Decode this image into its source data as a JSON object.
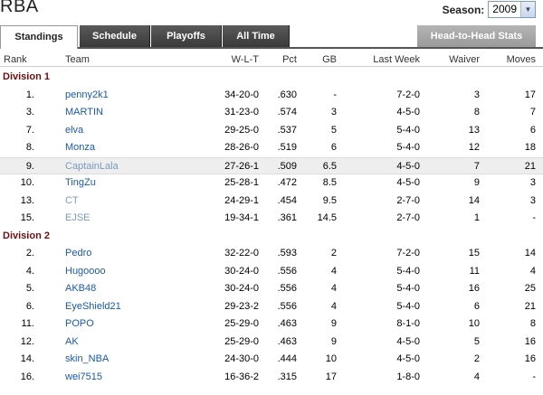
{
  "title": "RBA",
  "season": {
    "label": "Season:",
    "value": "2009"
  },
  "tabs": [
    {
      "label": "Standings"
    },
    {
      "label": "Schedule"
    },
    {
      "label": "Playoffs"
    },
    {
      "label": "All Time"
    }
  ],
  "h2h_label": "Head-to-Head Stats",
  "columns": {
    "rank": "Rank",
    "team": "Team",
    "wlt": "W-L-T",
    "pct": "Pct",
    "gb": "GB",
    "last_week": "Last Week",
    "waiver": "Waiver",
    "moves": "Moves"
  },
  "divisions": [
    {
      "name": "Division 1",
      "rows": [
        {
          "rank": "1.",
          "team": "penny2k1",
          "wlt": "34-20-0",
          "pct": ".630",
          "gb": "-",
          "last_week": "7-2-0",
          "waiver": "3",
          "moves": "17"
        },
        {
          "rank": "3.",
          "team": "MARTIN",
          "wlt": "31-23-0",
          "pct": ".574",
          "gb": "3",
          "last_week": "4-5-0",
          "waiver": "8",
          "moves": "7"
        },
        {
          "rank": "7.",
          "team": "elva",
          "wlt": "29-25-0",
          "pct": ".537",
          "gb": "5",
          "last_week": "5-4-0",
          "waiver": "13",
          "moves": "6"
        },
        {
          "rank": "8.",
          "team": "Monza",
          "wlt": "28-26-0",
          "pct": ".519",
          "gb": "6",
          "last_week": "5-4-0",
          "waiver": "12",
          "moves": "18"
        },
        {
          "rank": "9.",
          "team": "CaptainLala",
          "wlt": "27-26-1",
          "pct": ".509",
          "gb": "6.5",
          "last_week": "4-5-0",
          "waiver": "7",
          "moves": "21"
        },
        {
          "rank": "10.",
          "team": "TingZu",
          "wlt": "25-28-1",
          "pct": ".472",
          "gb": "8.5",
          "last_week": "4-5-0",
          "waiver": "9",
          "moves": "3"
        },
        {
          "rank": "13.",
          "team": "CT",
          "wlt": "24-29-1",
          "pct": ".454",
          "gb": "9.5",
          "last_week": "2-7-0",
          "waiver": "14",
          "moves": "3"
        },
        {
          "rank": "15.",
          "team": "EJSE",
          "wlt": "19-34-1",
          "pct": ".361",
          "gb": "14.5",
          "last_week": "2-7-0",
          "waiver": "1",
          "moves": "-"
        }
      ]
    },
    {
      "name": "Division 2",
      "rows": [
        {
          "rank": "2.",
          "team": "Pedro",
          "wlt": "32-22-0",
          "pct": ".593",
          "gb": "2",
          "last_week": "7-2-0",
          "waiver": "15",
          "moves": "14"
        },
        {
          "rank": "4.",
          "team": "Hugoooo",
          "wlt": "30-24-0",
          "pct": ".556",
          "gb": "4",
          "last_week": "5-4-0",
          "waiver": "11",
          "moves": "4"
        },
        {
          "rank": "5.",
          "team": "AKB48",
          "wlt": "30-24-0",
          "pct": ".556",
          "gb": "4",
          "last_week": "5-4-0",
          "waiver": "16",
          "moves": "25"
        },
        {
          "rank": "6.",
          "team": "EyeShield21",
          "wlt": "29-23-2",
          "pct": ".556",
          "gb": "4",
          "last_week": "5-4-0",
          "waiver": "6",
          "moves": "21"
        },
        {
          "rank": "11.",
          "team": "POPO",
          "wlt": "25-29-0",
          "pct": ".463",
          "gb": "9",
          "last_week": "8-1-0",
          "waiver": "10",
          "moves": "8"
        },
        {
          "rank": "12.",
          "team": "AK",
          "wlt": "25-29-0",
          "pct": ".463",
          "gb": "9",
          "last_week": "4-5-0",
          "waiver": "5",
          "moves": "16"
        },
        {
          "rank": "14.",
          "team": "skin_NBA",
          "wlt": "24-30-0",
          "pct": ".444",
          "gb": "10",
          "last_week": "4-5-0",
          "waiver": "2",
          "moves": "16"
        },
        {
          "rank": "16.",
          "team": "wei7515",
          "wlt": "16-36-2",
          "pct": ".315",
          "gb": "17",
          "last_week": "1-8-0",
          "waiver": "4",
          "moves": "-"
        }
      ]
    }
  ]
}
